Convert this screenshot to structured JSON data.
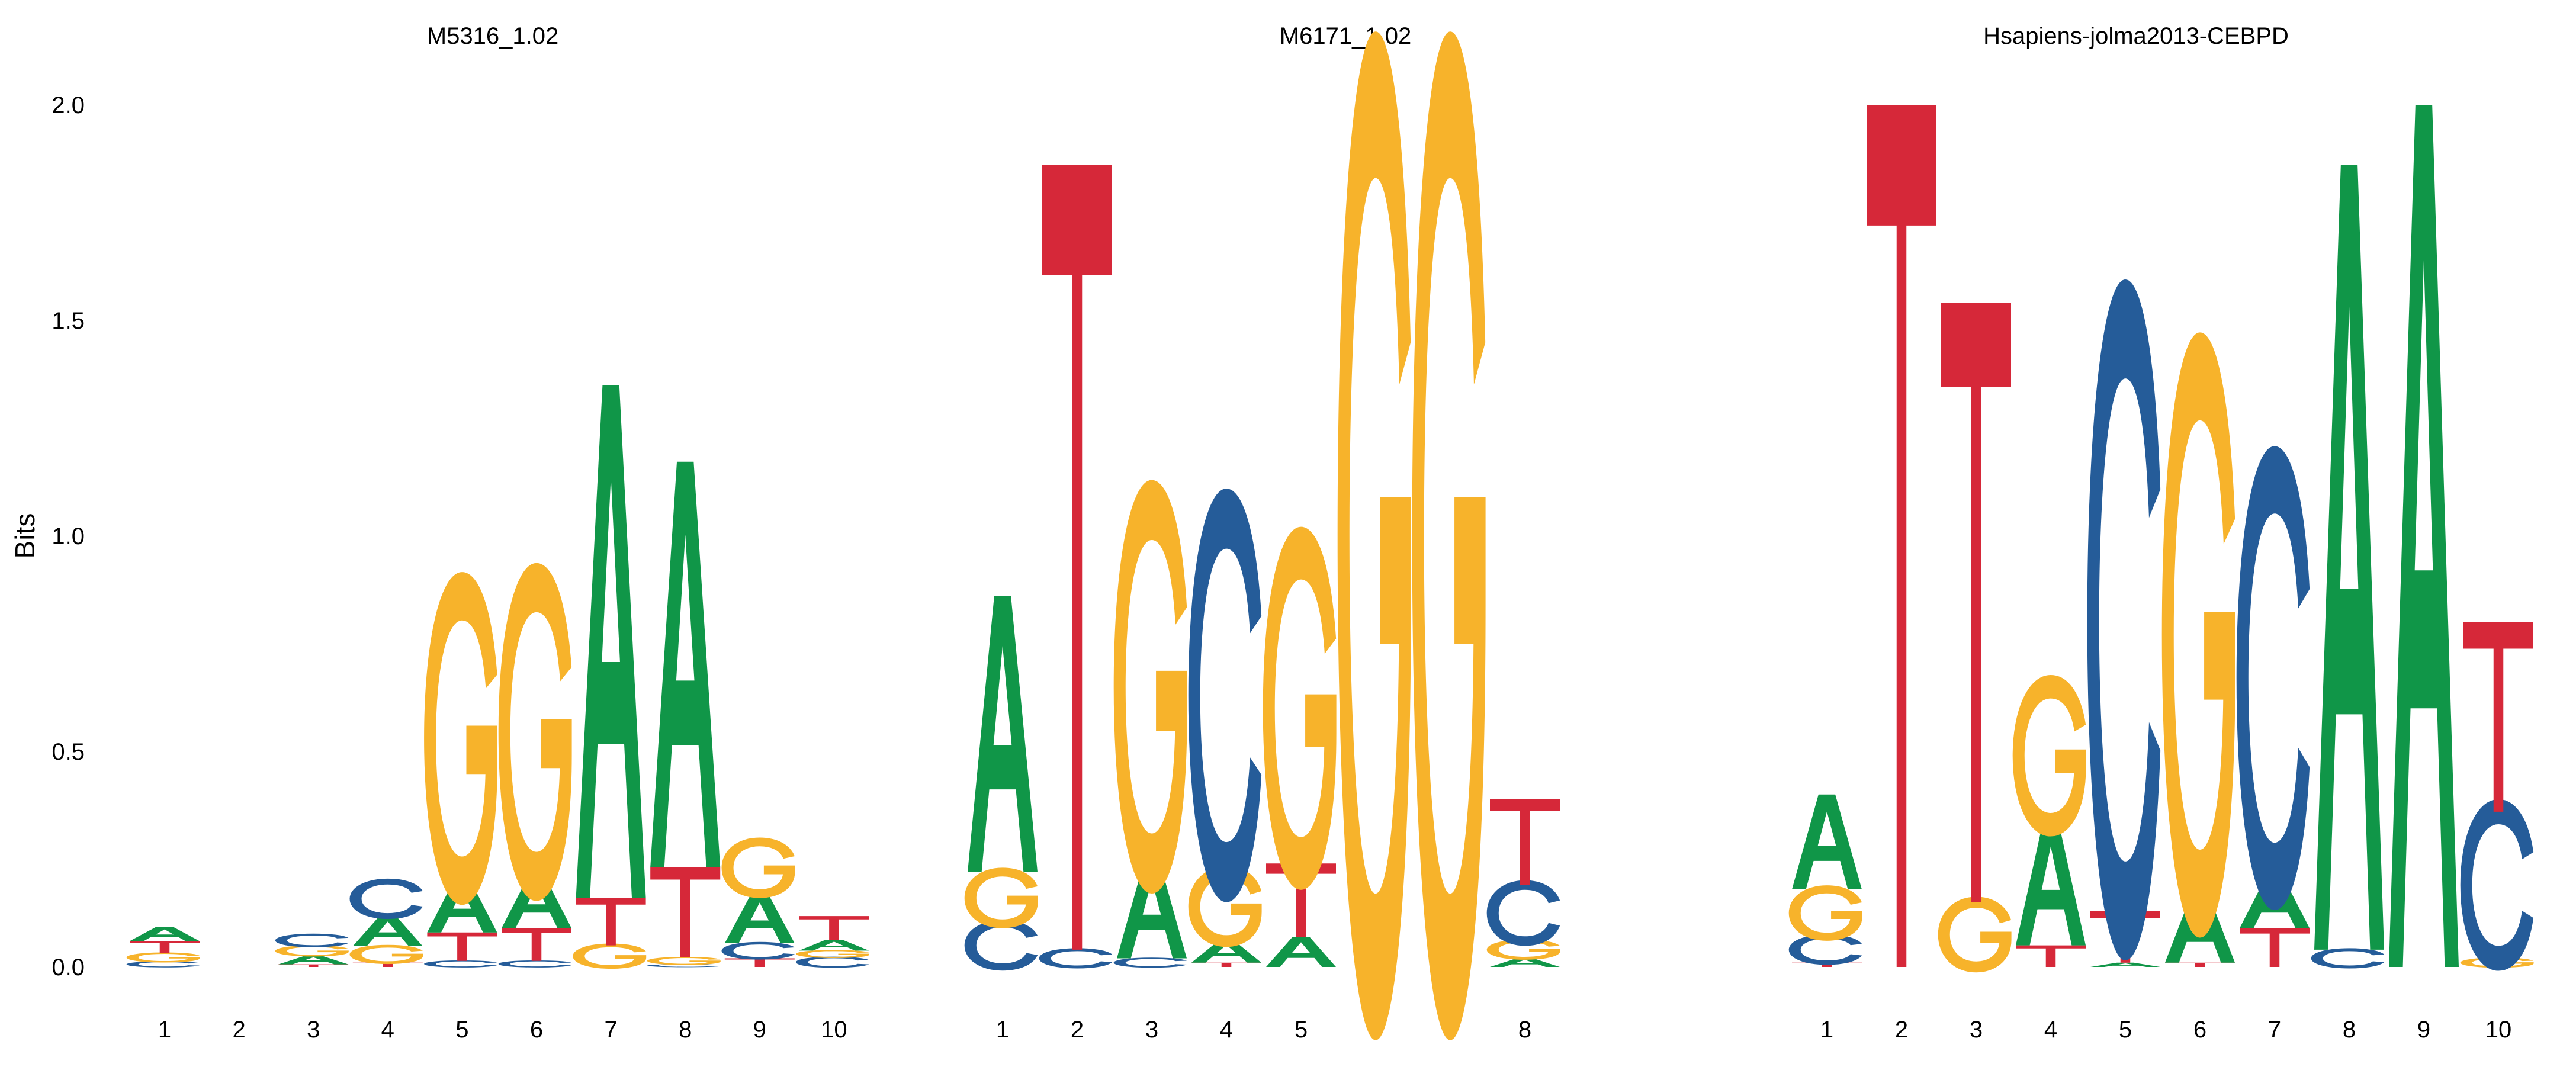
{
  "colors": {
    "A": "#109648",
    "C": "#255C99",
    "G": "#F7B32B",
    "T": "#D62839"
  },
  "y_axis": {
    "label": "Bits",
    "ticks": [
      "0.0",
      "0.5",
      "1.0",
      "1.5",
      "2.0"
    ]
  },
  "chart_data": [
    {
      "type": "sequence-logo",
      "title": "M5316_1.02",
      "ylabel": "Bits",
      "ylim": [
        0,
        2
      ],
      "positions": [
        "1",
        "2",
        "3",
        "4",
        "5",
        "6",
        "7",
        "8",
        "9",
        "10"
      ],
      "stacks": [
        [
          {
            "b": "C",
            "v": 0.012
          },
          {
            "b": "G",
            "v": 0.02
          },
          {
            "b": "T",
            "v": 0.028
          },
          {
            "b": "A",
            "v": 0.033
          }
        ],
        [],
        [
          {
            "b": "T",
            "v": 0.006
          },
          {
            "b": "A",
            "v": 0.02
          },
          {
            "b": "G",
            "v": 0.022
          },
          {
            "b": "C",
            "v": 0.027
          }
        ],
        [
          {
            "b": "T",
            "v": 0.01
          },
          {
            "b": "G",
            "v": 0.038
          },
          {
            "b": "A",
            "v": 0.07
          },
          {
            "b": "C",
            "v": 0.08
          }
        ],
        [
          {
            "b": "C",
            "v": 0.014
          },
          {
            "b": "T",
            "v": 0.066
          },
          {
            "b": "A",
            "v": 0.12
          },
          {
            "b": "G",
            "v": 0.66
          }
        ],
        [
          {
            "b": "C",
            "v": 0.014
          },
          {
            "b": "T",
            "v": 0.076
          },
          {
            "b": "A",
            "v": 0.12
          },
          {
            "b": "G",
            "v": 0.67
          }
        ],
        [
          {
            "b": "G",
            "v": 0.05
          },
          {
            "b": "T",
            "v": 0.11
          },
          {
            "b": "A",
            "v": 1.19
          }
        ],
        [
          {
            "b": "C",
            "v": 0.006
          },
          {
            "b": "G",
            "v": 0.016
          },
          {
            "b": "T",
            "v": 0.21
          },
          {
            "b": "A",
            "v": 0.94
          }
        ],
        [
          {
            "b": "T",
            "v": 0.02
          },
          {
            "b": "C",
            "v": 0.035
          },
          {
            "b": "A",
            "v": 0.115
          },
          {
            "b": "G",
            "v": 0.12
          }
        ],
        [
          {
            "b": "C",
            "v": 0.022
          },
          {
            "b": "G",
            "v": 0.016
          },
          {
            "b": "A",
            "v": 0.025
          },
          {
            "b": "T",
            "v": 0.055
          }
        ]
      ]
    },
    {
      "type": "sequence-logo",
      "title": "M6171_1.02",
      "ylabel": "Bits",
      "ylim": [
        0,
        2
      ],
      "positions": [
        "1",
        "2",
        "3",
        "4",
        "5",
        "6",
        "7",
        "8"
      ],
      "stacks": [
        [
          {
            "b": "C",
            "v": 0.1
          },
          {
            "b": "G",
            "v": 0.12
          },
          {
            "b": "A",
            "v": 0.64
          }
        ],
        [
          {
            "b": "C",
            "v": 0.04
          },
          {
            "b": "T",
            "v": 1.82
          }
        ],
        [
          {
            "b": "C",
            "v": 0.02
          },
          {
            "b": "A",
            "v": 0.22
          },
          {
            "b": "G",
            "v": 0.82
          }
        ],
        [
          {
            "b": "T",
            "v": 0.01
          },
          {
            "b": "A",
            "v": 0.05
          },
          {
            "b": "G",
            "v": 0.16
          },
          {
            "b": "C",
            "v": 0.82
          }
        ],
        [
          {
            "b": "A",
            "v": 0.07
          },
          {
            "b": "T",
            "v": 0.17
          },
          {
            "b": "G",
            "v": 0.72
          }
        ],
        [
          {
            "b": "G",
            "v": 2.0
          }
        ],
        [
          {
            "b": "G",
            "v": 2.0
          }
        ],
        [
          {
            "b": "A",
            "v": 0.02
          },
          {
            "b": "G",
            "v": 0.04
          },
          {
            "b": "C",
            "v": 0.13
          },
          {
            "b": "T",
            "v": 0.2
          }
        ]
      ]
    },
    {
      "type": "sequence-logo",
      "title": "Hsapiens-jolma2013-CEBPD",
      "ylabel": "Bits",
      "ylim": [
        0,
        2
      ],
      "positions": [
        "1",
        "2",
        "3",
        "4",
        "5",
        "6",
        "7",
        "8",
        "9",
        "10"
      ],
      "stacks": [
        [
          {
            "b": "T",
            "v": 0.01
          },
          {
            "b": "C",
            "v": 0.06
          },
          {
            "b": "G",
            "v": 0.11
          },
          {
            "b": "A",
            "v": 0.22
          }
        ],
        [
          {
            "b": "T",
            "v": 2.0
          }
        ],
        [
          {
            "b": "G",
            "v": 0.15
          },
          {
            "b": "T",
            "v": 1.39
          }
        ],
        [
          {
            "b": "T",
            "v": 0.05
          },
          {
            "b": "A",
            "v": 0.28
          },
          {
            "b": "G",
            "v": 0.32
          }
        ],
        [
          {
            "b": "A",
            "v": 0.01
          },
          {
            "b": "T",
            "v": 0.12
          },
          {
            "b": "C",
            "v": 1.35
          }
        ],
        [
          {
            "b": "T",
            "v": 0.01
          },
          {
            "b": "A",
            "v": 0.16
          },
          {
            "b": "G",
            "v": 1.2
          }
        ],
        [
          {
            "b": "T",
            "v": 0.09
          },
          {
            "b": "A",
            "v": 0.12
          },
          {
            "b": "C",
            "v": 0.92
          }
        ],
        [
          {
            "b": "C",
            "v": 0.04
          },
          {
            "b": "A",
            "v": 1.82
          }
        ],
        [
          {
            "b": "A",
            "v": 2.0
          }
        ],
        [
          {
            "b": "G",
            "v": 0.02
          },
          {
            "b": "C",
            "v": 0.34
          },
          {
            "b": "T",
            "v": 0.44
          }
        ]
      ]
    }
  ]
}
